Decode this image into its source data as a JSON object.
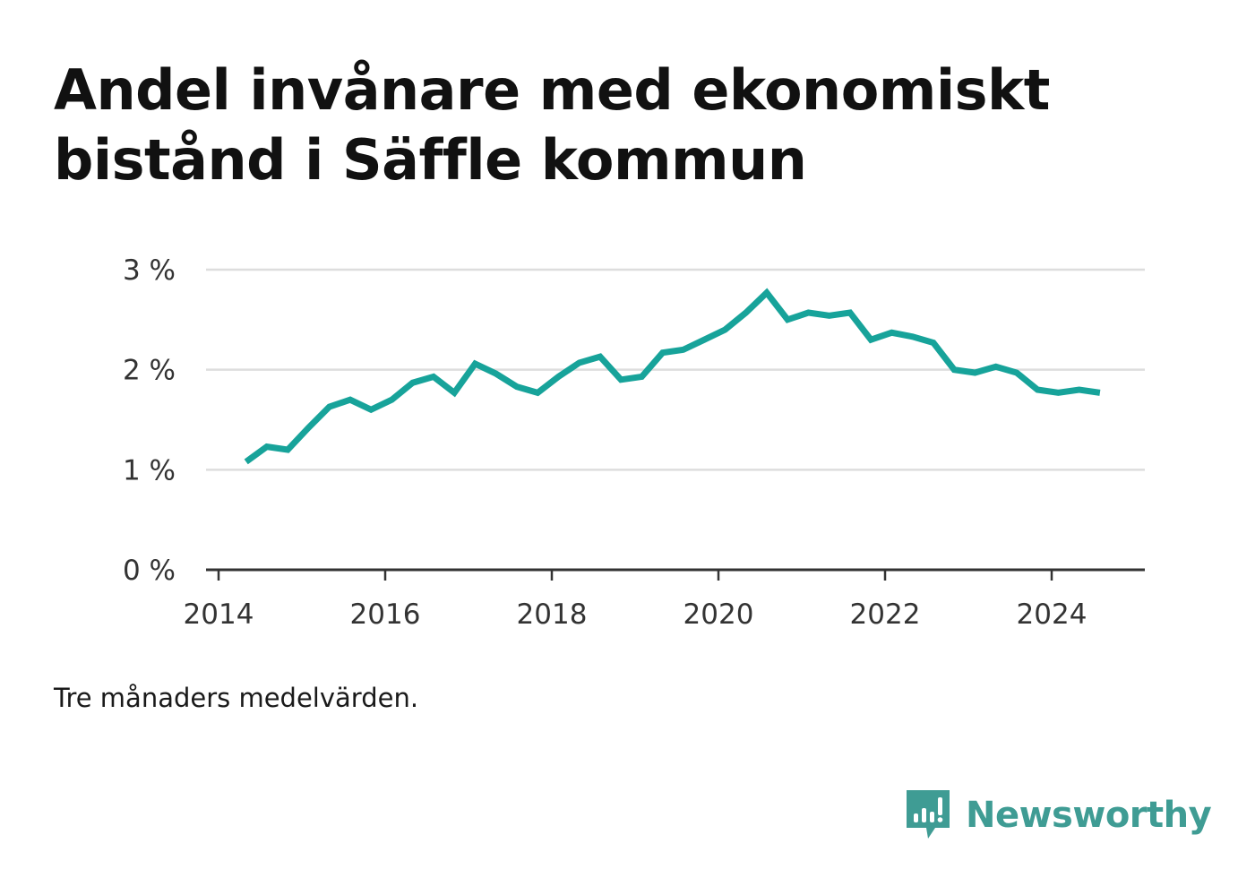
{
  "title": "Andel invånare med ekonomiskt bistånd i Säffle kommun",
  "note": "Tre månaders medelvärden.",
  "brand": {
    "name": "Newsworthy",
    "icon": "newsworthy-logo-icon",
    "color": "#3f9c94"
  },
  "colors": {
    "line": "#17a39a",
    "grid": "#dddddd",
    "axis": "#333333",
    "tick_text": "#333333"
  },
  "chart_data": {
    "type": "line",
    "title": "Andel invånare med ekonomiskt bistånd i Säffle kommun",
    "xlabel": "",
    "ylabel": "",
    "y_ticks": [
      0,
      1,
      2,
      3
    ],
    "y_tick_labels": [
      "0 %",
      "1 %",
      "2 %",
      "3 %"
    ],
    "x_ticks": [
      2014,
      2016,
      2018,
      2020,
      2022,
      2024
    ],
    "x_tick_labels": [
      "2014",
      "2016",
      "2018",
      "2020",
      "2022",
      "2024"
    ],
    "xlim": [
      2014,
      2025.1
    ],
    "ylim": [
      0,
      3
    ],
    "grid": true,
    "series": [
      {
        "x": [
          2014.33,
          2014.58,
          2014.83,
          2015.08,
          2015.33,
          2015.58,
          2015.83,
          2016.08,
          2016.33,
          2016.58,
          2016.83,
          2017.08,
          2017.33,
          2017.58,
          2017.83,
          2018.08,
          2018.33,
          2018.58,
          2018.83,
          2019.08,
          2019.33,
          2019.58,
          2019.83,
          2020.08,
          2020.33,
          2020.58,
          2020.83,
          2021.08,
          2021.33,
          2021.58,
          2021.83,
          2022.08,
          2022.33,
          2022.58,
          2022.83,
          2023.08,
          2023.33,
          2023.58,
          2023.83,
          2024.08,
          2024.33,
          2024.58
        ],
        "values": [
          1.08,
          1.23,
          1.2,
          1.42,
          1.63,
          1.7,
          1.6,
          1.7,
          1.87,
          1.93,
          1.77,
          2.06,
          1.96,
          1.83,
          1.77,
          1.93,
          2.07,
          2.13,
          1.9,
          1.93,
          2.17,
          2.2,
          2.3,
          2.4,
          2.57,
          2.77,
          2.5,
          2.57,
          2.54,
          2.57,
          2.3,
          2.37,
          2.33,
          2.27,
          2.0,
          1.97,
          2.03,
          1.97,
          1.8,
          1.77,
          1.8,
          1.77
        ]
      }
    ]
  }
}
